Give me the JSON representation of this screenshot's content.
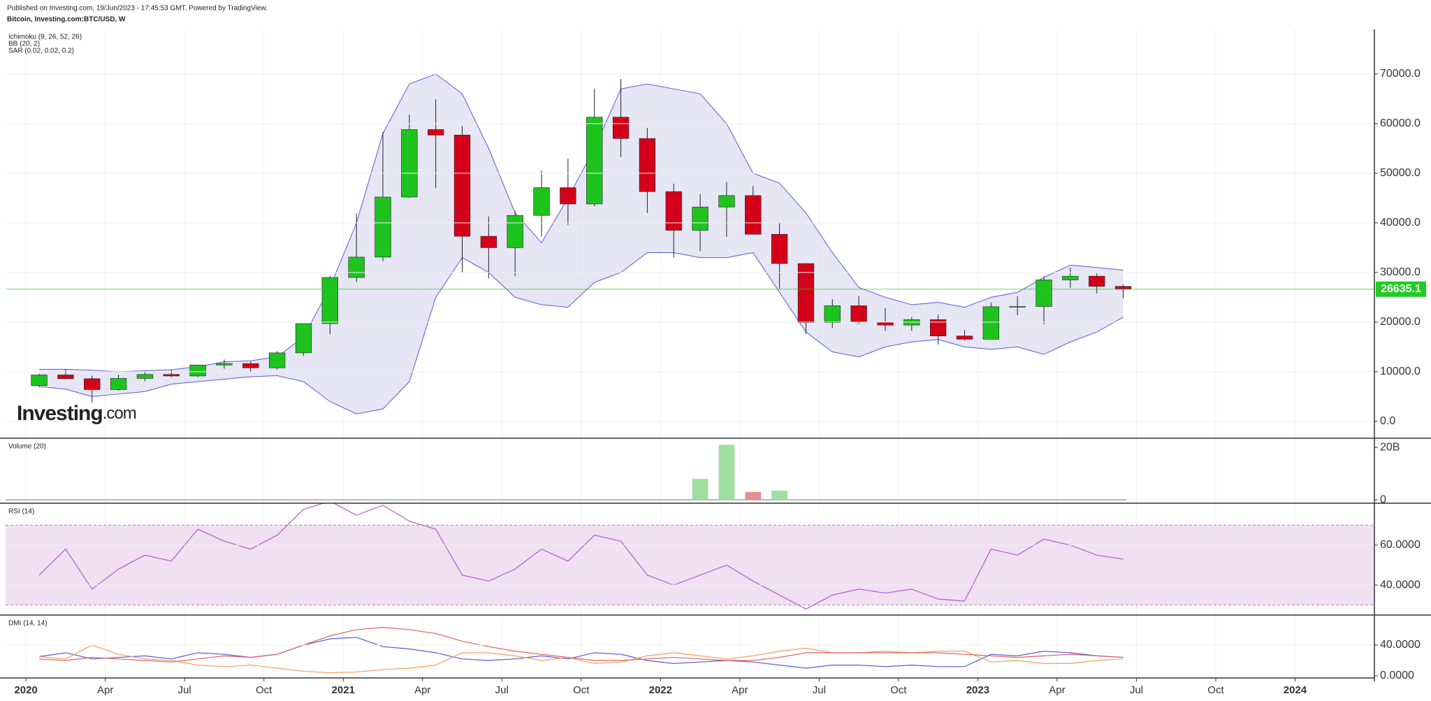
{
  "header": {
    "published": "Published on Investing.com, 19/Jun/2023 - 17:45:53 GMT, Powered by TradingView.",
    "symbol": "Bitcoin, Investing.com:BTC/USD, W",
    "logo": "Investing",
    "logo_suffix": ".com"
  },
  "chart_data": [
    {
      "type": "candlestick",
      "indicators": [
        "Ichimoku (9, 26, 52, 26)",
        "BB (20, 2)",
        "SAR (0.02, 0.02, 0.2)"
      ],
      "x": [
        0.5,
        1.5,
        2.5,
        3.5,
        4.5,
        5.5,
        6.5,
        7.5,
        8.5,
        9.5,
        10.5,
        11.5,
        12.5,
        13.5,
        14.5,
        15.5,
        16.5,
        17.5,
        18.5,
        19.5,
        20.5,
        21.5,
        22.5,
        23.5,
        24.5,
        25.5,
        26.5,
        27.5,
        28.5,
        29.5,
        30.5,
        31.5,
        32.5,
        33.5,
        34.5,
        35.5,
        36.5,
        37.5,
        38.5,
        39.5,
        40.5,
        41.5
      ],
      "open": [
        7200,
        9350,
        8600,
        6400,
        8650,
        9450,
        9140,
        11350,
        11650,
        10780,
        13800,
        19700,
        28990,
        33100,
        45200,
        58800,
        57700,
        37300,
        35000,
        41500,
        47100,
        43800,
        61300,
        57000,
        46300,
        38500,
        43200,
        45500,
        37700,
        31800,
        19900,
        23300,
        20000,
        19400,
        20500,
        17200,
        16550,
        23100,
        23150,
        28500,
        29250,
        27200
      ],
      "high": [
        9600,
        10500,
        9200,
        9400,
        10000,
        10400,
        11400,
        12450,
        12100,
        14100,
        19500,
        29300,
        41900,
        58300,
        61800,
        64900,
        59500,
        41300,
        42400,
        50500,
        52900,
        67000,
        69000,
        59100,
        47900,
        45800,
        48200,
        47400,
        40000,
        31900,
        24600,
        25200,
        22800,
        21000,
        21500,
        18400,
        23900,
        25200,
        29200,
        31000,
        29800,
        27600
      ],
      "low": [
        6900,
        8500,
        3800,
        6200,
        8100,
        8900,
        8900,
        10600,
        9900,
        10400,
        13200,
        17600,
        28100,
        32300,
        45000,
        47000,
        30000,
        28800,
        29300,
        37300,
        39600,
        43300,
        53300,
        42000,
        33000,
        34300,
        37200,
        37700,
        26700,
        17600,
        18800,
        19600,
        18200,
        18200,
        15500,
        16300,
        16500,
        21400,
        19600,
        26900,
        25800,
        24800
      ],
      "close": [
        9350,
        8600,
        6400,
        8650,
        9450,
        9140,
        11350,
        11650,
        10780,
        13800,
        19700,
        28990,
        33100,
        45200,
        58800,
        57700,
        37300,
        35000,
        41500,
        47100,
        43800,
        61300,
        57000,
        46300,
        38500,
        43200,
        45500,
        37700,
        31800,
        19900,
        23300,
        20000,
        19400,
        20500,
        17200,
        16550,
        23100,
        23150,
        28500,
        29250,
        27200,
        26635.1
      ],
      "up_color": "#1ec31e",
      "down_color": "#d4001a",
      "bb_upper": [
        10500,
        10500,
        10300,
        10000,
        10200,
        10400,
        11000,
        12000,
        12200,
        13000,
        17000,
        27000,
        40000,
        58000,
        68000,
        70000,
        66000,
        55000,
        42000,
        36000,
        45000,
        55000,
        67000,
        68000,
        67000,
        66000,
        60000,
        50000,
        48000,
        42000,
        34000,
        27000,
        25000,
        23500,
        24000,
        23000,
        25000,
        26000,
        29000,
        31500,
        31000,
        30500
      ],
      "bb_lower": [
        7000,
        6500,
        5000,
        5500,
        6000,
        7500,
        8000,
        8500,
        9000,
        9200,
        8000,
        4000,
        1500,
        2500,
        8000,
        25000,
        33000,
        30000,
        25000,
        23500,
        23000,
        28000,
        30000,
        34000,
        34000,
        33000,
        33000,
        34000,
        26000,
        18000,
        14000,
        13000,
        15000,
        16000,
        16500,
        15000,
        14500,
        15000,
        13500,
        16000,
        18000,
        21000
      ],
      "bb_color": "#5b5bd6",
      "bb_fill": "#dcdcf0",
      "last_price": 26635.1,
      "last_price_color": "#22cc22",
      "xlim": [
        -0.77,
        51
      ],
      "ylim": [
        -3400,
        79000
      ],
      "yticks": [
        {
          "value": 0,
          "label": "0.0"
        },
        {
          "value": 10000,
          "label": "10000.0"
        },
        {
          "value": 20000,
          "label": "20000.0"
        },
        {
          "value": 30000,
          "label": "30000.0"
        },
        {
          "value": 40000,
          "label": "40000.0"
        },
        {
          "value": 50000,
          "label": "50000.0"
        },
        {
          "value": 60000,
          "label": "60000.0"
        },
        {
          "value": 70000,
          "label": "70000.0"
        }
      ],
      "grid": true
    },
    {
      "type": "bar",
      "title": "Volume (20)",
      "x": [
        0.5,
        1.5,
        2.5,
        3.5,
        4.5,
        5.5,
        6.5,
        7.5,
        8.5,
        9.5,
        10.5,
        11.5,
        12.5,
        13.5,
        14.5,
        15.5,
        16.5,
        17.5,
        18.5,
        19.5,
        20.5,
        21.5,
        22.5,
        23.5,
        24.5,
        25.5,
        26.5,
        27.5,
        28.5,
        29.5,
        30.5,
        31.5,
        32.5,
        33.5,
        34.5,
        35.5,
        36.5,
        37.5,
        38.5,
        39.5,
        40.5,
        41.5
      ],
      "values": [
        0,
        0,
        0,
        0,
        0,
        0,
        0,
        0,
        0,
        0,
        0,
        0,
        0,
        0,
        0,
        0,
        0,
        0,
        0,
        0,
        0,
        0,
        0,
        0,
        0,
        8000000000,
        21000000000,
        3000000000,
        3500000000,
        0,
        0,
        0,
        0,
        0,
        0,
        0,
        0,
        0,
        0,
        0,
        0,
        0
      ],
      "colors": [
        "#e58e95",
        "#9fe09f"
      ],
      "ylim": [
        -1300000000,
        23500000000
      ],
      "yticks": [
        0,
        {
          "value": 20000000000,
          "label": "20B"
        }
      ]
    },
    {
      "type": "line",
      "title": "RSI (14)",
      "x": [
        0.5,
        1.5,
        2.5,
        3.5,
        4.5,
        5.5,
        6.5,
        7.5,
        8.5,
        9.5,
        10.5,
        11.5,
        12.5,
        13.5,
        14.5,
        15.5,
        16.5,
        17.5,
        18.5,
        19.5,
        20.5,
        21.5,
        22.5,
        23.5,
        24.5,
        25.5,
        26.5,
        27.5,
        28.5,
        29.5,
        30.5,
        31.5,
        32.5,
        33.5,
        34.5,
        35.5,
        36.5,
        37.5,
        38.5,
        39.5,
        40.5,
        41.5
      ],
      "values": [
        45,
        58,
        38,
        48,
        55,
        52,
        68,
        62,
        58,
        65,
        78,
        82,
        75,
        80,
        72,
        68,
        45,
        42,
        48,
        58,
        52,
        65,
        62,
        45,
        40,
        45,
        50,
        42,
        35,
        28,
        35,
        38,
        36,
        38,
        33,
        32,
        58,
        55,
        63,
        60,
        55,
        53
      ],
      "color": "#b05cc8",
      "band": [
        30,
        70
      ],
      "band_color": "#f0e0f2",
      "ylim": [
        25,
        81
      ],
      "yticks": [
        {
          "value": 40,
          "label": "40.0000"
        },
        {
          "value": 60,
          "label": "60.0000"
        }
      ]
    },
    {
      "type": "line",
      "title": "DMI (14, 14)",
      "x": [
        0.5,
        1.5,
        2.5,
        3.5,
        4.5,
        5.5,
        6.5,
        7.5,
        8.5,
        9.5,
        10.5,
        11.5,
        12.5,
        13.5,
        14.5,
        15.5,
        16.5,
        17.5,
        18.5,
        19.5,
        20.5,
        21.5,
        22.5,
        23.5,
        24.5,
        25.5,
        26.5,
        27.5,
        28.5,
        29.5,
        30.5,
        31.5,
        32.5,
        33.5,
        34.5,
        35.5,
        36.5,
        37.5,
        38.5,
        39.5,
        40.5,
        41.5
      ],
      "series": [
        {
          "color": "#5a5ad8",
          "values": [
            25,
            30,
            22,
            24,
            26,
            22,
            30,
            28,
            24,
            28,
            40,
            48,
            50,
            38,
            35,
            30,
            22,
            20,
            22,
            26,
            22,
            30,
            28,
            20,
            16,
            18,
            20,
            18,
            14,
            10,
            14,
            14,
            12,
            14,
            12,
            12,
            28,
            26,
            32,
            30,
            26,
            24
          ]
        },
        {
          "color": "#f0a060",
          "values": [
            25,
            22,
            40,
            28,
            22,
            20,
            14,
            12,
            14,
            10,
            6,
            4,
            5,
            8,
            10,
            14,
            30,
            30,
            26,
            20,
            24,
            16,
            18,
            26,
            30,
            26,
            22,
            26,
            32,
            36,
            30,
            30,
            32,
            30,
            32,
            32,
            18,
            20,
            16,
            16,
            20,
            22
          ]
        },
        {
          "color": "#e06060",
          "values": [
            22,
            20,
            24,
            22,
            20,
            18,
            22,
            26,
            24,
            28,
            40,
            52,
            60,
            63,
            60,
            55,
            45,
            38,
            32,
            28,
            24,
            20,
            20,
            22,
            24,
            22,
            20,
            20,
            24,
            30,
            30,
            30,
            30,
            30,
            30,
            28,
            26,
            24,
            26,
            28,
            26,
            24
          ]
        }
      ],
      "ylim": [
        -2.7,
        79
      ],
      "yticks": [
        {
          "value": 0,
          "label": "0.0000"
        },
        {
          "value": 40,
          "label": "40.0000"
        }
      ],
      "xticks": [
        {
          "value": 0,
          "label": "2020"
        },
        {
          "value": 3,
          "label": "Apr"
        },
        {
          "value": 6,
          "label": "Jul"
        },
        {
          "value": 9,
          "label": "Oct"
        },
        {
          "value": 12,
          "label": "2021"
        },
        {
          "value": 15,
          "label": "Apr"
        },
        {
          "value": 18,
          "label": "Jul"
        },
        {
          "value": 21,
          "label": "Oct"
        },
        {
          "value": 24,
          "label": "2022"
        },
        {
          "value": 27,
          "label": "Apr"
        },
        {
          "value": 30,
          "label": "Jul"
        },
        {
          "value": 33,
          "label": "Oct"
        },
        {
          "value": 36,
          "label": "2023"
        },
        {
          "value": 39,
          "label": "Apr"
        },
        {
          "value": 42,
          "label": "Jul"
        },
        {
          "value": 45,
          "label": "Oct"
        },
        {
          "value": 48,
          "label": "2024"
        }
      ]
    }
  ]
}
